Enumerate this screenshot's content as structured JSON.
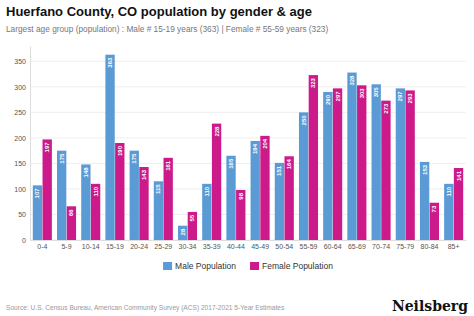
{
  "chart_data": {
    "type": "bar",
    "title": "Huerfano County, CO population by gender & age",
    "subtitle": "Largest age group (population) : Male # 15-19 years (363) | Female # 55-59 years (323)",
    "categories": [
      "0-4",
      "5-9",
      "10-14",
      "15-19",
      "20-24",
      "25-29",
      "30-34",
      "35-39",
      "40-44",
      "45-49",
      "50-54",
      "55-59",
      "60-64",
      "65-69",
      "70-74",
      "75-79",
      "80-84",
      "85+"
    ],
    "series": [
      {
        "name": "Male Population",
        "color": "#5b9bd5",
        "values": [
          107,
          175,
          148,
          363,
          175,
          115,
          28,
          110,
          165,
          194,
          151,
          250,
          290,
          328,
          305,
          297,
          153,
          110
        ]
      },
      {
        "name": "Female Population",
        "color": "#cc1a8a",
        "values": [
          197,
          66,
          110,
          190,
          143,
          161,
          55,
          228,
          98,
          204,
          164,
          323,
          297,
          303,
          273,
          293,
          73,
          141
        ]
      }
    ],
    "ylim": [
      0,
      380
    ],
    "yticks": [
      0,
      50,
      100,
      150,
      200,
      250,
      300,
      350
    ],
    "grid": true,
    "data_labels": true,
    "legend": "bottom",
    "annotations": [
      "Source: U.S. Census Bureau, American Community Survey (ACS) 2017-2021 5-Year Estimates",
      "Neilsberg"
    ]
  }
}
